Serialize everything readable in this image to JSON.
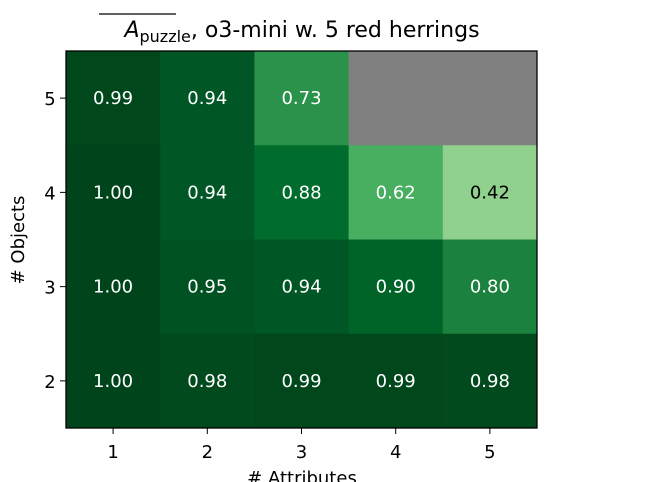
{
  "chart_data": {
    "type": "heatmap",
    "title": {
      "symbol": "A",
      "subscript": "puzzle",
      "rest": ", o3-mini w. 5 red herrings"
    },
    "xlabel": "# Attributes",
    "ylabel": "# Objects",
    "x_categories": [
      "1",
      "2",
      "3",
      "4",
      "5"
    ],
    "y_categories": [
      "5",
      "4",
      "3",
      "2"
    ],
    "values": [
      [
        0.99,
        0.94,
        0.73,
        null,
        null
      ],
      [
        1.0,
        0.94,
        0.88,
        0.62,
        0.42
      ],
      [
        1.0,
        0.95,
        0.94,
        0.9,
        0.8
      ],
      [
        1.0,
        0.98,
        0.99,
        0.99,
        0.98
      ]
    ],
    "labels": [
      [
        "0.99",
        "0.94",
        "0.73",
        "",
        ""
      ],
      [
        "1.00",
        "0.94",
        "0.88",
        "0.62",
        "0.42"
      ],
      [
        "1.00",
        "0.95",
        "0.94",
        "0.90",
        "0.80"
      ],
      [
        "1.00",
        "0.98",
        "0.99",
        "0.99",
        "0.98"
      ]
    ],
    "colormap": "Greens",
    "missing_color": "#808080",
    "colors": {
      "1.00": "#00441b",
      "0.99": "#00471c",
      "0.98": "#004a1e",
      "0.95": "#005222",
      "0.94": "#005624",
      "0.90": "#006428",
      "0.88": "#006d2c",
      "0.80": "#1b813e",
      "0.73": "#2a924a",
      "0.62": "#48ae60",
      "0.42": "#90d18d"
    }
  }
}
